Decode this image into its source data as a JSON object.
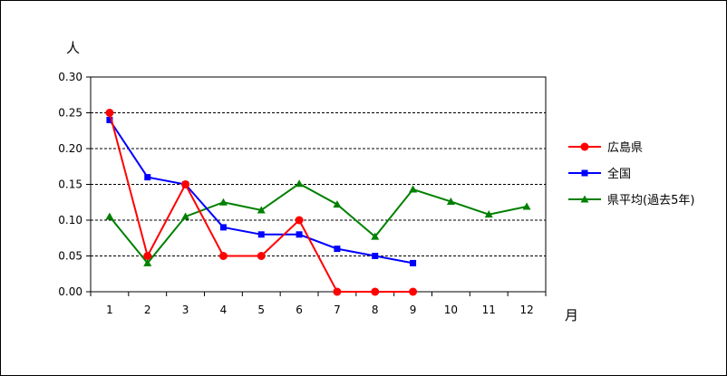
{
  "chart_data": {
    "type": "line",
    "title": "",
    "xlabel": "月",
    "ylabel": "人",
    "categories": [
      "1",
      "2",
      "3",
      "4",
      "5",
      "6",
      "7",
      "8",
      "9",
      "10",
      "11",
      "12"
    ],
    "ylim": [
      0,
      0.3
    ],
    "yticks": [
      "0.00",
      "0.05",
      "0.10",
      "0.15",
      "0.20",
      "0.25",
      "0.30"
    ],
    "grid": "horizontal-dashed",
    "legend_position": "right",
    "series": [
      {
        "name": "広島県",
        "color": "#ff0000",
        "marker": "circle",
        "values": [
          0.25,
          0.05,
          0.15,
          0.05,
          0.05,
          0.1,
          0.0,
          0.0,
          0.0,
          null,
          null,
          null
        ]
      },
      {
        "name": "全国",
        "color": "#0000ff",
        "marker": "square",
        "values": [
          0.24,
          0.16,
          0.15,
          0.09,
          0.08,
          0.08,
          0.06,
          0.05,
          0.04,
          null,
          null,
          null
        ]
      },
      {
        "name": "県平均(過去5年)",
        "color": "#008000",
        "marker": "triangle",
        "values": [
          0.105,
          0.04,
          0.105,
          0.125,
          0.114,
          0.151,
          0.122,
          0.077,
          0.143,
          0.126,
          0.108,
          0.119
        ]
      }
    ]
  }
}
